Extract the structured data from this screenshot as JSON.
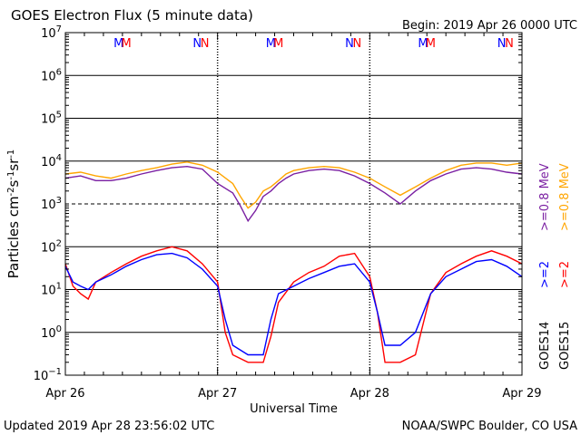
{
  "title": "GOES Electron Flux (5 minute data)",
  "begin": "Begin: 2019 Apr 26 0000 UTC",
  "updated": "Updated 2019 Apr 28 23:56:02 UTC",
  "credit": "NOAA/SWPC Boulder, CO USA",
  "colors": {
    "goes14_hi": "#7a1fa2",
    "goes15_hi": "#ffa500",
    "goes14_lo": "#0000ff",
    "goes15_lo": "#ff0000",
    "marker_m": "#0000ff",
    "marker_m2": "#ff0000"
  },
  "chart_data": {
    "type": "line",
    "title": "GOES Electron Flux (5 minute data)",
    "xlabel": "Universal Time",
    "ylabel": "Particles cm-2s-1sr-1",
    "x_ticks": [
      "Apr 26",
      "Apr 27",
      "Apr 28",
      "Apr 29"
    ],
    "y_scale": "log",
    "ylim": [
      0.1,
      10000000
    ],
    "y_ticks": [
      "10^-1",
      "10^0",
      "10^1",
      "10^2",
      "10^3",
      "10^4",
      "10^5",
      "10^6",
      "10^7"
    ],
    "threshold_lines": [
      1000
    ],
    "markers": {
      "labels": [
        "M",
        "M",
        "N",
        "N"
      ],
      "day_offsets_m": [
        0.35,
        0.4
      ],
      "day_offsets_n": [
        0.95,
        1.0
      ]
    },
    "right_labels": {
      "goes14": "GOES14",
      "goes15": "GOES15",
      "goes14_hi": ">=0.8 MeV",
      "goes15_hi": ">=0.8 MeV",
      "goes14_lo": ">=2",
      "goes15_lo": ">=2"
    },
    "series": [
      {
        "name": "GOES15 >=0.8 MeV",
        "x": [
          0,
          0.1,
          0.2,
          0.3,
          0.4,
          0.5,
          0.6,
          0.7,
          0.8,
          0.9,
          1.0,
          1.1,
          1.15,
          1.2,
          1.25,
          1.3,
          1.35,
          1.4,
          1.45,
          1.5,
          1.6,
          1.7,
          1.8,
          1.9,
          2.0,
          2.1,
          2.2,
          2.3,
          2.4,
          2.5,
          2.6,
          2.7,
          2.8,
          2.9,
          3.0
        ],
        "y": [
          5000,
          5500,
          4500,
          4000,
          5000,
          6000,
          7000,
          8500,
          9500,
          8000,
          5500,
          3000,
          1500,
          800,
          1100,
          2000,
          2500,
          3500,
          5000,
          6000,
          7000,
          7500,
          7000,
          5500,
          4000,
          2500,
          1600,
          2500,
          4000,
          6000,
          8000,
          9000,
          9000,
          8000,
          9000
        ]
      },
      {
        "name": "GOES14 >=0.8 MeV",
        "x": [
          0,
          0.1,
          0.2,
          0.3,
          0.4,
          0.5,
          0.6,
          0.7,
          0.8,
          0.9,
          1.0,
          1.1,
          1.15,
          1.2,
          1.25,
          1.3,
          1.35,
          1.4,
          1.45,
          1.5,
          1.6,
          1.7,
          1.8,
          1.9,
          2.0,
          2.1,
          2.2,
          2.3,
          2.4,
          2.5,
          2.6,
          2.7,
          2.8,
          2.9,
          3.0
        ],
        "y": [
          4000,
          4500,
          3500,
          3500,
          4000,
          5000,
          6000,
          7000,
          7500,
          6500,
          3000,
          1800,
          900,
          400,
          700,
          1500,
          2000,
          3000,
          4000,
          5000,
          6000,
          6500,
          6000,
          4500,
          3000,
          1800,
          1000,
          2000,
          3500,
          5000,
          6500,
          7000,
          6500,
          5500,
          5000
        ]
      },
      {
        "name": "GOES15 >=2",
        "x": [
          0,
          0.05,
          0.1,
          0.15,
          0.2,
          0.3,
          0.4,
          0.5,
          0.6,
          0.7,
          0.8,
          0.9,
          1.0,
          1.05,
          1.1,
          1.2,
          1.3,
          1.35,
          1.4,
          1.5,
          1.6,
          1.7,
          1.8,
          1.9,
          2.0,
          2.05,
          2.1,
          2.2,
          2.3,
          2.4,
          2.5,
          2.6,
          2.7,
          2.8,
          2.9,
          3.0
        ],
        "y": [
          40,
          12,
          8,
          6,
          15,
          25,
          40,
          60,
          80,
          100,
          80,
          40,
          15,
          1,
          0.3,
          0.2,
          0.2,
          0.8,
          5,
          15,
          25,
          35,
          60,
          70,
          20,
          3,
          0.2,
          0.2,
          0.3,
          8,
          25,
          40,
          60,
          80,
          60,
          40
        ]
      },
      {
        "name": "GOES14 >=2",
        "x": [
          0,
          0.05,
          0.1,
          0.15,
          0.2,
          0.3,
          0.4,
          0.5,
          0.6,
          0.7,
          0.8,
          0.9,
          1.0,
          1.05,
          1.1,
          1.2,
          1.3,
          1.35,
          1.4,
          1.5,
          1.6,
          1.7,
          1.8,
          1.9,
          2.0,
          2.05,
          2.1,
          2.2,
          2.3,
          2.4,
          2.5,
          2.6,
          2.7,
          2.8,
          2.9,
          3.0
        ],
        "y": [
          35,
          15,
          12,
          10,
          15,
          22,
          35,
          50,
          65,
          70,
          55,
          30,
          12,
          2,
          0.5,
          0.3,
          0.3,
          2,
          8,
          12,
          18,
          25,
          35,
          40,
          15,
          3,
          0.5,
          0.5,
          1,
          8,
          20,
          30,
          45,
          50,
          35,
          20
        ]
      }
    ]
  }
}
